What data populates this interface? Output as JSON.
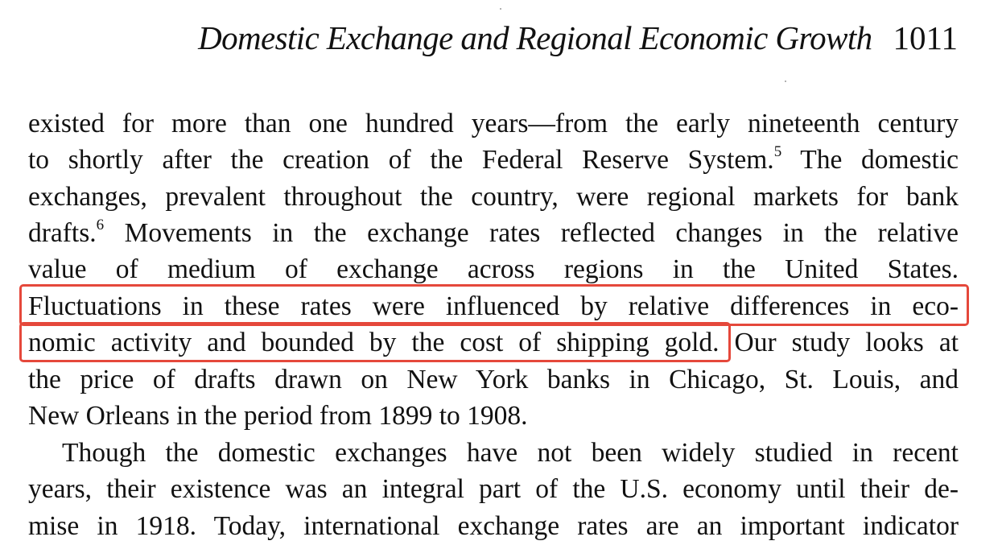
{
  "header": {
    "title": "Domestic Exchange and Regional Economic Growth",
    "page_number": "1011"
  },
  "paragraphs": [
    {
      "lines": [
        {
          "text": "existed for more than one hundred years—from the early nineteenth century"
        },
        {
          "text": "to shortly after the creation of the Federal Reserve System.",
          "footnote": "5",
          "after": " The domestic"
        },
        {
          "text": "exchanges, prevalent throughout the country, were regional markets for bank"
        },
        {
          "text": "drafts.",
          "footnote": "6",
          "after": " Movements in the exchange rates reflected changes in the relative"
        },
        {
          "text": "value of medium of exchange across regions in the United States."
        },
        {
          "text": "Fluctuations in these rates were influenced by relative differences in eco-"
        },
        {
          "text": "nomic activity and bounded by the cost of shipping gold.",
          "after": " Our study looks at"
        },
        {
          "text": "the price of drafts drawn on New York banks in Chicago, St. Louis, and"
        },
        {
          "text": "New Orleans in the period from 1899 to 1908."
        }
      ]
    },
    {
      "lines": [
        {
          "text": "Though the domestic exchanges have not been widely studied in recent"
        },
        {
          "text": "years, their existence was an integral part of the U.S. economy until their de-"
        },
        {
          "text": "mise in 1918. Today, international exchange rates are an important indicator"
        }
      ]
    }
  ],
  "highlight": {
    "color": "#e5483b",
    "text": "Fluctuations in these rates were influenced by relative differences in economic activity and bounded by the cost of shipping gold."
  }
}
